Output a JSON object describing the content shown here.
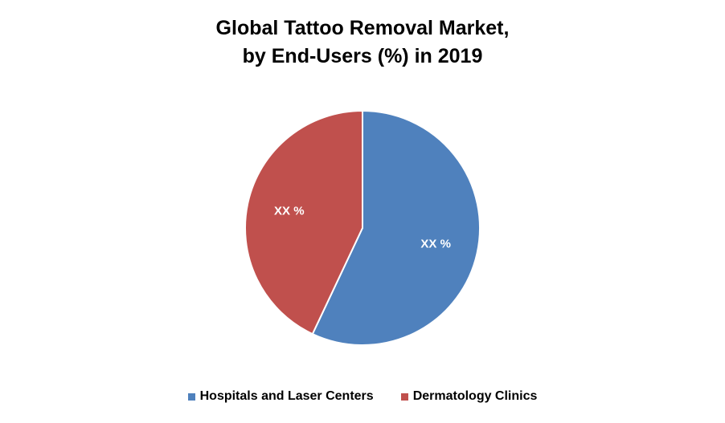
{
  "chart_data": {
    "type": "pie",
    "title": "Global Tattoo Removal Market,",
    "subtitle": "by End-Users (%) in 2019",
    "slices": [
      {
        "name": "Hospitals and Laser Centers",
        "value": 57,
        "label": "XX %",
        "color": "#4F81BD"
      },
      {
        "name": "Dermatology Clinics",
        "value": 43,
        "label": "XX %",
        "color": "#C0504D"
      }
    ],
    "legend_position": "bottom",
    "start_angle_deg": 0,
    "direction": "clockwise"
  }
}
